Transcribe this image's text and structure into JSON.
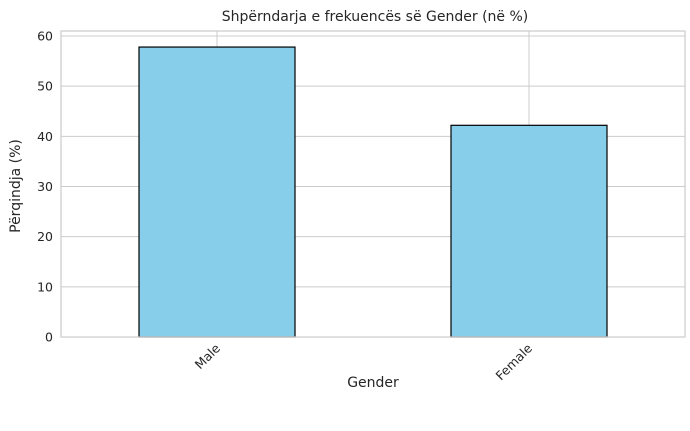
{
  "chart_data": {
    "type": "bar",
    "title": "Shpërndarja e frekuencës së Gender (në %)",
    "xlabel": "Gender",
    "ylabel": "Përqindja (%)",
    "categories": [
      "Male",
      "Female"
    ],
    "values": [
      57.8,
      42.2
    ],
    "ylim": [
      0,
      61
    ],
    "yticks": [
      0,
      10,
      20,
      30,
      40,
      50,
      60
    ],
    "ytick_labels": [
      "0",
      "10",
      "20",
      "30",
      "40",
      "50",
      "60"
    ],
    "grid": true,
    "legend": "none",
    "x_tick_rotation": 45,
    "colors": {
      "bar_fill": "#87ceeb",
      "bar_edge": "#000000",
      "grid": "#cccccc",
      "axes_edge": "#cccccc",
      "background": "#ffffff",
      "text": "#262626"
    }
  }
}
